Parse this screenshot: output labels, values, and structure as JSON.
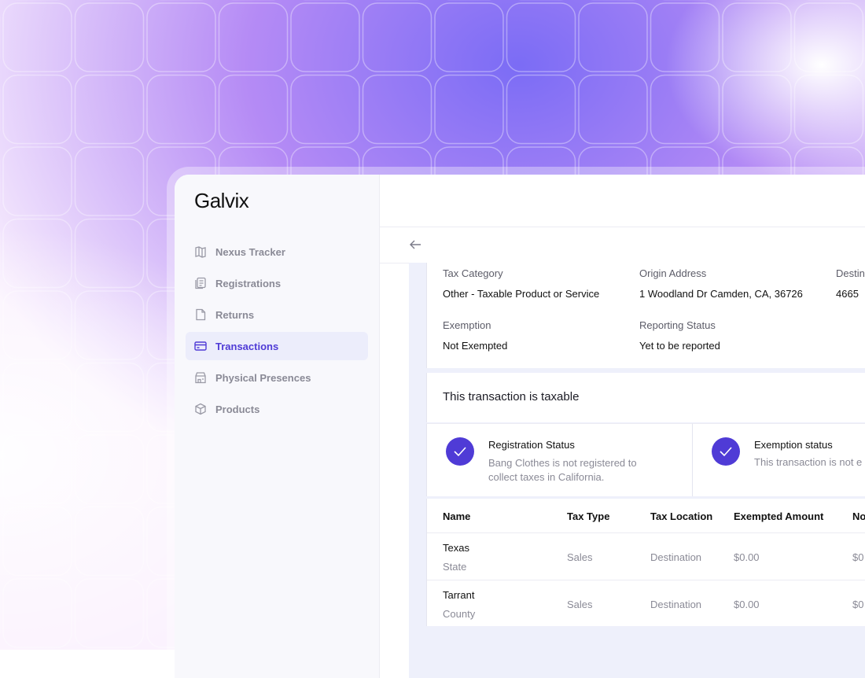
{
  "brand": "Galvix",
  "nav": [
    "Nexus Tracker",
    "Registrations",
    "Returns",
    "Transactions",
    "Physical Presences",
    "Products"
  ],
  "details": [
    {
      "label": "Tax Category",
      "value": "Other - Taxable Product or Service"
    },
    {
      "label": "Origin Address",
      "value": "1 Woodland Dr Camden, CA, 36726"
    },
    {
      "label": "Destin",
      "value": "4665"
    },
    {
      "label": "Exemption",
      "value": "Not Exempted"
    },
    {
      "label": "Reporting Status",
      "value": "Yet to be reported"
    }
  ],
  "banner": "This transaction is taxable",
  "status_cards": [
    {
      "title": "Registration Status",
      "text": "Bang Clothes is not registered to collect taxes in California."
    },
    {
      "title": "Exemption status",
      "text": "This transaction is not e"
    }
  ],
  "table": {
    "header": [
      "Name",
      "Tax Type",
      "Tax Location",
      "Exempted Amount",
      "No"
    ],
    "rows": [
      {
        "name": "Texas",
        "sub": "State",
        "cells": [
          "Sales",
          "Destination",
          "$0.00",
          "$0"
        ]
      },
      {
        "name": "Tarrant",
        "sub": "County",
        "cells": [
          "Sales",
          "Destination",
          "$0.00",
          "$0"
        ]
      }
    ]
  }
}
